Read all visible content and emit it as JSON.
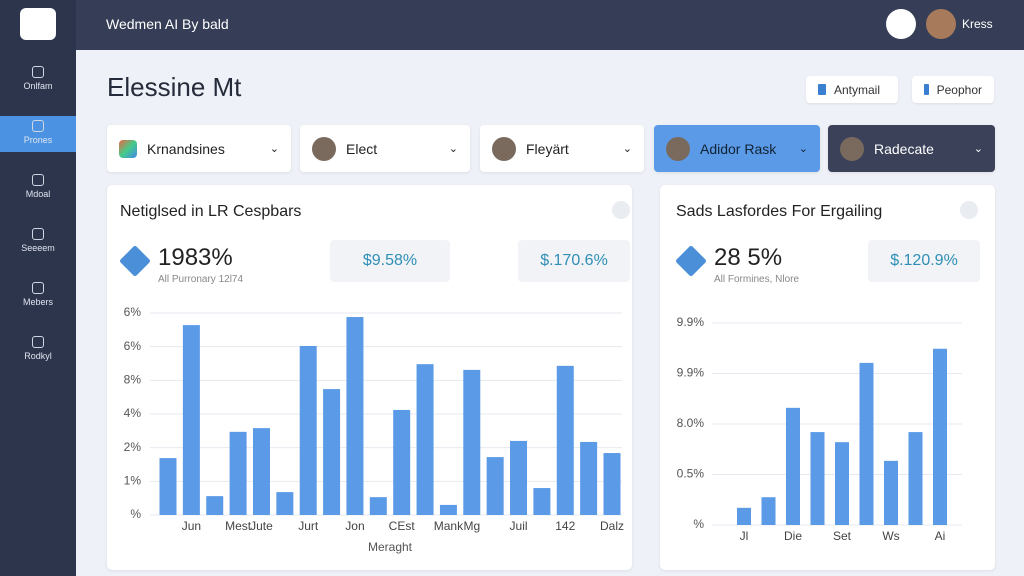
{
  "header": {
    "app_title": "Wedmen AI By bald",
    "user_name": "Kress"
  },
  "sidebar": {
    "items": [
      "Onlfam",
      "Prones",
      "Mdoal",
      "Seeeem",
      "Mebers",
      "Rodkyl"
    ],
    "active": 1
  },
  "page": {
    "title": "Elessine Mt",
    "buttons": [
      "Antymail",
      "Peophor"
    ]
  },
  "filters": [
    "Krnandsines",
    "Elect",
    "Fleyärt",
    "Adidor Rask",
    "Radecate"
  ],
  "cards": [
    {
      "stat": "1983%",
      "stat_caption": "All Purronary 12l74",
      "pills": [
        "$9.58%",
        "$.170.6%"
      ]
    },
    {
      "stat": "28 5%",
      "stat_caption": "All Formines, Nlore",
      "pills": [
        "$.120.9%"
      ]
    }
  ],
  "chart_data": [
    {
      "type": "bar",
      "title": "Netiglsed in LR Cespbars",
      "x_label": "Meraght",
      "color": "#5a9ae6",
      "grid": true,
      "ylim": [
        0,
        6
      ],
      "y_labels": [
        "6%",
        "6%",
        "8%",
        "4%",
        "2%",
        "1%",
        "%"
      ],
      "categories": [
        null,
        "Jun",
        null,
        "Mest",
        "Jute",
        null,
        "Jurt",
        null,
        "Jon",
        null,
        "CEst",
        null,
        "Mank",
        "Mg",
        null,
        "Juil",
        null,
        "142",
        null,
        "Dalz"
      ],
      "values": [
        1.69,
        5.64,
        0.56,
        2.47,
        2.58,
        0.68,
        5.02,
        3.74,
        5.88,
        0.53,
        3.12,
        4.48,
        0.3,
        4.31,
        1.72,
        2.2,
        0.8,
        4.43,
        2.17,
        1.84
      ]
    },
    {
      "type": "bar",
      "title": "Sads Lasfordes For Ergailing",
      "color": "#5a9ae6",
      "grid": true,
      "ylim": [
        0,
        4
      ],
      "y_labels": [
        "9.9%",
        "9.9%",
        "8.0%",
        "0.5%",
        "%"
      ],
      "categories": [
        "Jl",
        null,
        "Die",
        null,
        "Set",
        null,
        "Ws",
        null,
        "Ai"
      ],
      "values": [
        0.34,
        0.55,
        2.32,
        1.84,
        1.64,
        3.21,
        1.27,
        1.84,
        3.49
      ]
    }
  ]
}
